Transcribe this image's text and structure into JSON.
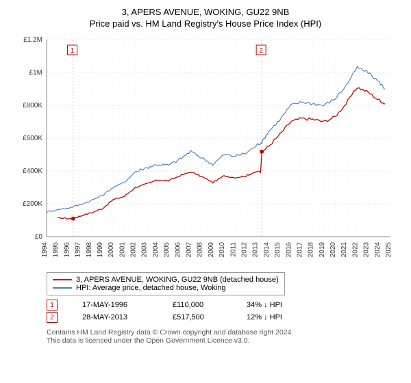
{
  "titles": {
    "line1": "3, APERS AVENUE, WOKING, GU22 9NB",
    "line2": "Price paid vs. HM Land Registry's House Price Index (HPI)"
  },
  "chart": {
    "type": "line",
    "background_color": "#ffffff",
    "plot_border_color": "#cccccc",
    "axis_text_color": "#333333",
    "grid_dash": "2,3",
    "grid_color": "#cccccc",
    "grid_color_light": "#eeeeee",
    "label_fontsize": 11,
    "tick_fontsize": 10,
    "y": {
      "min": 0,
      "max": 1200000,
      "ticks": [
        0,
        200000,
        400000,
        600000,
        800000,
        1000000,
        1200000
      ],
      "tick_labels": [
        "£0",
        "£200K",
        "£400K",
        "£600K",
        "£800K",
        "£1M",
        "£1.2M"
      ]
    },
    "x": {
      "min": 1994,
      "max": 2025,
      "ticks": [
        1994,
        1995,
        1996,
        1997,
        1998,
        1999,
        2000,
        2001,
        2002,
        2003,
        2004,
        2005,
        2006,
        2007,
        2008,
        2009,
        2010,
        2011,
        2012,
        2013,
        2014,
        2015,
        2016,
        2017,
        2018,
        2019,
        2020,
        2021,
        2022,
        2023,
        2024,
        2025
      ]
    },
    "event_markers": [
      {
        "label": "1",
        "year": 1996.38,
        "color": "#cc0000",
        "dash_color": "#f3b2b2"
      },
      {
        "label": "2",
        "year": 2013.4,
        "color": "#cc0000",
        "dash_color": "#f3b2b2"
      }
    ],
    "series": [
      {
        "name": "price_paid",
        "label": "3, APERS AVENUE, WOKING, GU22 9NB (detached house)",
        "color": "#cc0000",
        "width": 1.3,
        "points": [
          [
            1995,
            115000
          ],
          [
            1996,
            110000
          ],
          [
            1996.4,
            110000
          ],
          [
            1997,
            125000
          ],
          [
            1998,
            145000
          ],
          [
            1999,
            170000
          ],
          [
            2000,
            225000
          ],
          [
            2001,
            245000
          ],
          [
            2002,
            300000
          ],
          [
            2003,
            320000
          ],
          [
            2004,
            345000
          ],
          [
            2005,
            340000
          ],
          [
            2006,
            370000
          ],
          [
            2007,
            395000
          ],
          [
            2008,
            365000
          ],
          [
            2009,
            330000
          ],
          [
            2010,
            370000
          ],
          [
            2011,
            360000
          ],
          [
            2012,
            370000
          ],
          [
            2012.5,
            385000
          ],
          [
            2013,
            395000
          ],
          [
            2013.3,
            400000
          ],
          [
            2013.4,
            517500
          ],
          [
            2014,
            550000
          ],
          [
            2015,
            620000
          ],
          [
            2016,
            700000
          ],
          [
            2017,
            720000
          ],
          [
            2018,
            715000
          ],
          [
            2019,
            700000
          ],
          [
            2020,
            730000
          ],
          [
            2021,
            810000
          ],
          [
            2022,
            910000
          ],
          [
            2023,
            880000
          ],
          [
            2024,
            830000
          ],
          [
            2024.5,
            810000
          ]
        ]
      },
      {
        "name": "hpi",
        "label": "HPI: Average price, detached house, Woking",
        "color": "#4a77c4",
        "width": 1.1,
        "points": [
          [
            1994,
            150000
          ],
          [
            1995,
            165000
          ],
          [
            1996,
            175000
          ],
          [
            1997,
            195000
          ],
          [
            1998,
            220000
          ],
          [
            1999,
            250000
          ],
          [
            2000,
            300000
          ],
          [
            2001,
            330000
          ],
          [
            2002,
            395000
          ],
          [
            2003,
            420000
          ],
          [
            2004,
            440000
          ],
          [
            2005,
            435000
          ],
          [
            2006,
            470000
          ],
          [
            2007,
            520000
          ],
          [
            2008,
            480000
          ],
          [
            2009,
            440000
          ],
          [
            2010,
            500000
          ],
          [
            2011,
            490000
          ],
          [
            2012,
            510000
          ],
          [
            2013,
            560000
          ],
          [
            2013.4,
            575000
          ],
          [
            2014,
            640000
          ],
          [
            2015,
            710000
          ],
          [
            2016,
            800000
          ],
          [
            2017,
            820000
          ],
          [
            2018,
            810000
          ],
          [
            2019,
            800000
          ],
          [
            2020,
            840000
          ],
          [
            2021,
            920000
          ],
          [
            2022,
            1030000
          ],
          [
            2023,
            1000000
          ],
          [
            2024,
            940000
          ],
          [
            2024.5,
            900000
          ]
        ]
      }
    ]
  },
  "legend": {
    "items": [
      {
        "color": "#cc0000",
        "label": "3, APERS AVENUE, WOKING, GU22 9NB (detached house)"
      },
      {
        "color": "#4a77c4",
        "label": "HPI: Average price, detached house, Woking"
      }
    ]
  },
  "events": [
    {
      "mark": "1",
      "mark_color": "#cc0000",
      "date": "17-MAY-1996",
      "price": "£110,000",
      "delta": "34% ↓ HPI"
    },
    {
      "mark": "2",
      "mark_color": "#cc0000",
      "date": "28-MAY-2013",
      "price": "£517,500",
      "delta": "12% ↓ HPI"
    }
  ],
  "footer": {
    "line1": "Contains HM Land Registry data © Crown copyright and database right 2024.",
    "line2": "This data is licensed under the Open Government Licence v3.0."
  }
}
